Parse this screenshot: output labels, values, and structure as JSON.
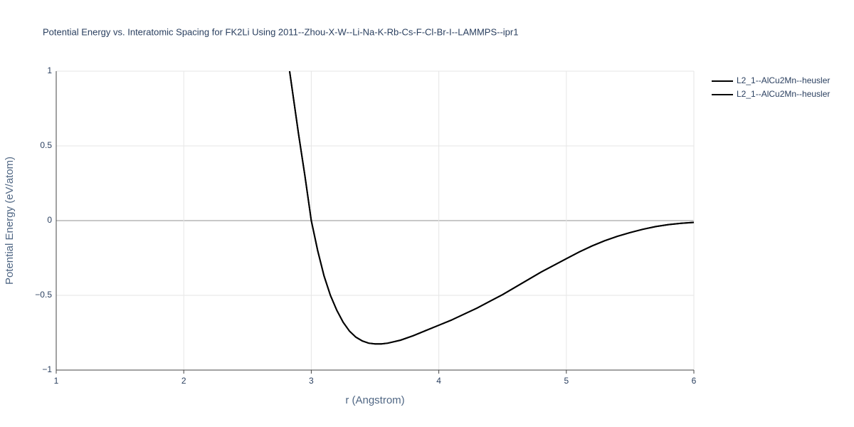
{
  "chart_data": {
    "type": "line",
    "title": "Potential Energy vs. Interatomic Spacing for FK2Li Using 2011--Zhou-X-W--Li-Na-K-Rb-Cs-F-Cl-Br-I--LAMMPS--ipr1",
    "x_label": "r (Angstrom)",
    "y_label": "Potential Energy (eV/atom)",
    "x": [
      2.83,
      2.85,
      2.9,
      2.95,
      3.0,
      3.05,
      3.1,
      3.15,
      3.2,
      3.25,
      3.3,
      3.35,
      3.4,
      3.45,
      3.5,
      3.55,
      3.6,
      3.7,
      3.8,
      3.9,
      4.0,
      4.1,
      4.2,
      4.3,
      4.4,
      4.5,
      4.6,
      4.7,
      4.8,
      4.9,
      5.0,
      5.1,
      5.2,
      5.3,
      5.4,
      5.5,
      5.6,
      5.7,
      5.8,
      5.9,
      6.0
    ],
    "series": [
      {
        "name": "L2_1--AlCu2Mn--heusler",
        "color": "#000000",
        "values": [
          1.0,
          0.88,
          0.58,
          0.3,
          0.0,
          -0.2,
          -0.37,
          -0.5,
          -0.6,
          -0.68,
          -0.74,
          -0.78,
          -0.805,
          -0.82,
          -0.825,
          -0.825,
          -0.82,
          -0.8,
          -0.77,
          -0.735,
          -0.7,
          -0.665,
          -0.625,
          -0.585,
          -0.54,
          -0.495,
          -0.445,
          -0.395,
          -0.345,
          -0.3,
          -0.255,
          -0.21,
          -0.17,
          -0.135,
          -0.105,
          -0.08,
          -0.058,
          -0.04,
          -0.027,
          -0.018,
          -0.012
        ]
      },
      {
        "name": "L2_1--AlCu2Mn--heusler",
        "color": "#000000",
        "values": [
          1.0,
          0.88,
          0.58,
          0.3,
          0.0,
          -0.2,
          -0.37,
          -0.5,
          -0.6,
          -0.68,
          -0.74,
          -0.78,
          -0.805,
          -0.82,
          -0.825,
          -0.825,
          -0.82,
          -0.8,
          -0.77,
          -0.735,
          -0.7,
          -0.665,
          -0.625,
          -0.585,
          -0.54,
          -0.495,
          -0.445,
          -0.395,
          -0.345,
          -0.3,
          -0.255,
          -0.21,
          -0.17,
          -0.135,
          -0.105,
          -0.08,
          -0.058,
          -0.04,
          -0.027,
          -0.018,
          -0.012
        ]
      }
    ],
    "xlim": [
      1,
      6
    ],
    "xticks": [
      1,
      2,
      3,
      4,
      5,
      6
    ],
    "ylim": [
      -1,
      1
    ],
    "yticks": [
      {
        "value": -1,
        "label": "−1"
      },
      {
        "value": -0.5,
        "label": "−0.5"
      },
      0,
      0.5,
      1
    ],
    "grid": true,
    "legend": "top-right"
  }
}
